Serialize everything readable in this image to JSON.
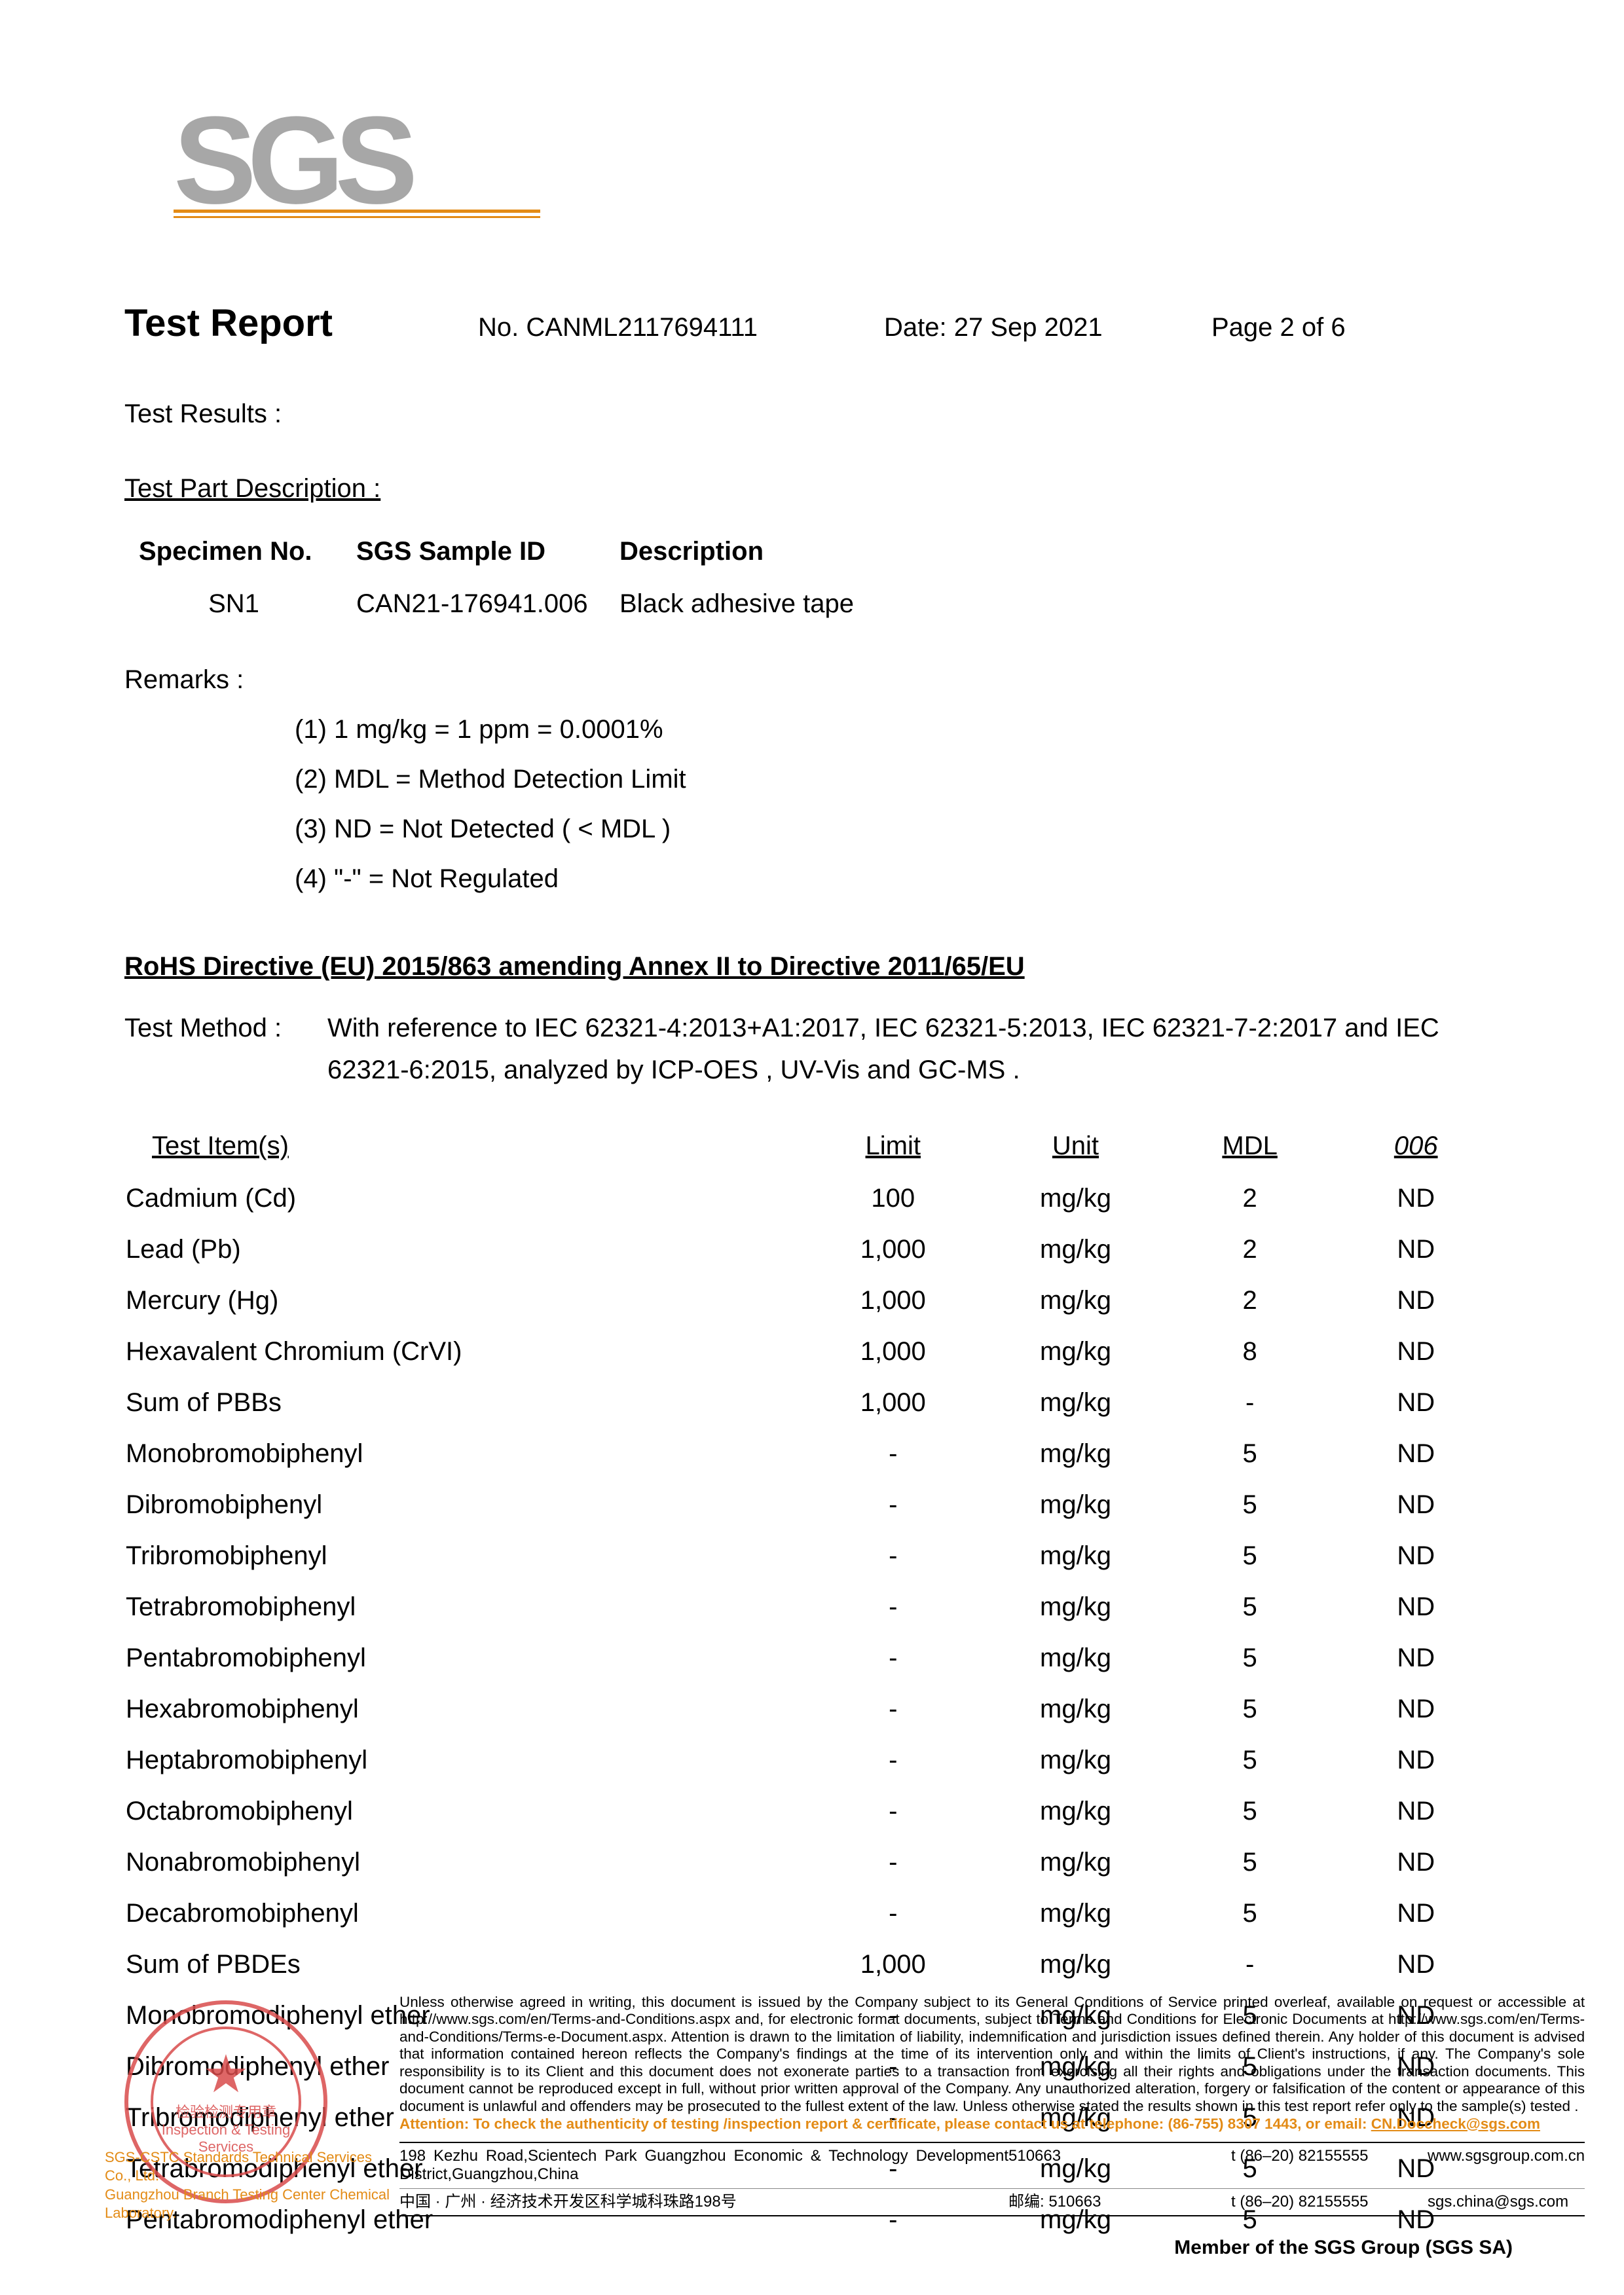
{
  "logo_text": "SGS",
  "header": {
    "title": "Test Report",
    "no_label": "No.",
    "no": "CANML2117694111",
    "date_label": "Date:",
    "date": "27 Sep 2021",
    "page_label": "Page",
    "page": "2 of 6"
  },
  "labels": {
    "test_results": "Test Results :",
    "test_part_desc": "Test Part Description :",
    "remarks": "Remarks :",
    "test_method": "Test Method :"
  },
  "specimen_headers": {
    "spec": "Specimen No.",
    "sgs": "SGS Sample ID",
    "desc": "Description"
  },
  "specimens": [
    {
      "spec": "SN1",
      "sgs": "CAN21-176941.006",
      "desc": "Black adhesive tape"
    }
  ],
  "remarks": [
    "(1) 1 mg/kg = 1 ppm = 0.0001%",
    "(2) MDL = Method Detection Limit",
    "(3) ND = Not Detected ( < MDL )",
    "(4) \"-\" = Not Regulated"
  ],
  "rohs_heading": "RoHS Directive (EU) 2015/863 amending Annex II to Directive 2011/65/EU",
  "method_text": "With reference to IEC 62321-4:2013+A1:2017, IEC 62321-5:2013,  IEC 62321-7-2:2017 and IEC 62321-6:2015, analyzed by ICP-OES , UV-Vis  and GC-MS .",
  "results": {
    "headers": {
      "item": "Test Item(s)",
      "limit": "Limit",
      "unit": "Unit",
      "mdl": "MDL",
      "val": "006"
    },
    "rows": [
      {
        "item": "Cadmium (Cd)",
        "limit": "100",
        "unit": "mg/kg",
        "mdl": "2",
        "val": "ND"
      },
      {
        "item": "Lead (Pb)",
        "limit": "1,000",
        "unit": "mg/kg",
        "mdl": "2",
        "val": "ND"
      },
      {
        "item": "Mercury (Hg)",
        "limit": "1,000",
        "unit": "mg/kg",
        "mdl": "2",
        "val": "ND"
      },
      {
        "item": "Hexavalent Chromium (CrVI)",
        "limit": "1,000",
        "unit": "mg/kg",
        "mdl": "8",
        "val": "ND"
      },
      {
        "item": "Sum of PBBs",
        "limit": "1,000",
        "unit": "mg/kg",
        "mdl": "-",
        "val": "ND"
      },
      {
        "item": "Monobromobiphenyl",
        "limit": "-",
        "unit": "mg/kg",
        "mdl": "5",
        "val": "ND"
      },
      {
        "item": "Dibromobiphenyl",
        "limit": "-",
        "unit": "mg/kg",
        "mdl": "5",
        "val": "ND"
      },
      {
        "item": "Tribromobiphenyl",
        "limit": "-",
        "unit": "mg/kg",
        "mdl": "5",
        "val": "ND"
      },
      {
        "item": "Tetrabromobiphenyl",
        "limit": "-",
        "unit": "mg/kg",
        "mdl": "5",
        "val": "ND"
      },
      {
        "item": "Pentabromobiphenyl",
        "limit": "-",
        "unit": "mg/kg",
        "mdl": "5",
        "val": "ND"
      },
      {
        "item": "Hexabromobiphenyl",
        "limit": "-",
        "unit": "mg/kg",
        "mdl": "5",
        "val": "ND"
      },
      {
        "item": "Heptabromobiphenyl",
        "limit": "-",
        "unit": "mg/kg",
        "mdl": "5",
        "val": "ND"
      },
      {
        "item": "Octabromobiphenyl",
        "limit": "-",
        "unit": "mg/kg",
        "mdl": "5",
        "val": "ND"
      },
      {
        "item": "Nonabromobiphenyl",
        "limit": "-",
        "unit": "mg/kg",
        "mdl": "5",
        "val": "ND"
      },
      {
        "item": "Decabromobiphenyl",
        "limit": "-",
        "unit": "mg/kg",
        "mdl": "5",
        "val": "ND"
      },
      {
        "item": "Sum of PBDEs",
        "limit": "1,000",
        "unit": "mg/kg",
        "mdl": "-",
        "val": "ND"
      },
      {
        "item": "Monobromodiphenyl ether",
        "limit": "-",
        "unit": "mg/kg",
        "mdl": "5",
        "val": "ND"
      },
      {
        "item": "Dibromodiphenyl ether",
        "limit": "-",
        "unit": "mg/kg",
        "mdl": "5",
        "val": "ND"
      },
      {
        "item": "Tribromodiphenyl ether",
        "limit": "-",
        "unit": "mg/kg",
        "mdl": "5",
        "val": "ND"
      },
      {
        "item": "Tetrabromodiphenyl ether",
        "limit": "-",
        "unit": "mg/kg",
        "mdl": "5",
        "val": "ND"
      },
      {
        "item": "Pentabromodiphenyl ether",
        "limit": "-",
        "unit": "mg/kg",
        "mdl": "5",
        "val": "ND"
      }
    ]
  },
  "stamp": {
    "line1": "检验检测专用章",
    "line2": "Inspection & Testing Services",
    "sub1": "SGS-CSTC Standards Technical Services Co., Ltd.",
    "sub2": "Guangzhou Branch Testing Center Chemical Laboratory."
  },
  "disclaimer": {
    "main": "Unless otherwise agreed in writing, this document is issued by the Company subject to its General Conditions of Service printed overleaf, available on request or accessible at http://www.sgs.com/en/Terms-and-Conditions.aspx and, for electronic format documents, subject to Terms and Conditions for Electronic Documents at http://www.sgs.com/en/Terms-and-Conditions/Terms-e-Document.aspx. Attention is drawn to the limitation of liability, indemnification and jurisdiction issues defined therein. Any holder of this document is advised that information contained hereon reflects the Company's findings at the time of its intervention only and within the limits of Client's instructions, if any. The Company's sole responsibility is to its Client and this document does not exonerate parties to a transaction from exercising all their rights and obligations under the transaction documents. This document cannot be reproduced except in full, without prior written approval of the Company. Any unauthorized alteration, forgery or falsification of the content or appearance of this document is unlawful and offenders may be prosecuted to the fullest extent of the law. Unless otherwise stated the results shown in this test report refer only to the sample(s) tested .",
    "attention": "Attention: To check the authenticity of testing /inspection report & certificate, please contact us at telephone: (86-755) 8307 1443, or email: ",
    "email": "CN.Doccheck@sgs.com"
  },
  "address": {
    "row1": {
      "addr": "198 Kezhu Road,Scientech Park Guangzhou Economic & Technology Development District,Guangzhou,China",
      "zip": "510663",
      "tel": "t  (86–20) 82155555",
      "web": "www.sgsgroup.com.cn"
    },
    "row2": {
      "addr": "中国 · 广州 · 经济技术开发区科学城科珠路198号",
      "zip": "邮编: 510663",
      "tel": "t  (86–20) 82155555",
      "web": "sgs.china@sgs.com"
    }
  },
  "member": "Member of the SGS Group (SGS SA)"
}
